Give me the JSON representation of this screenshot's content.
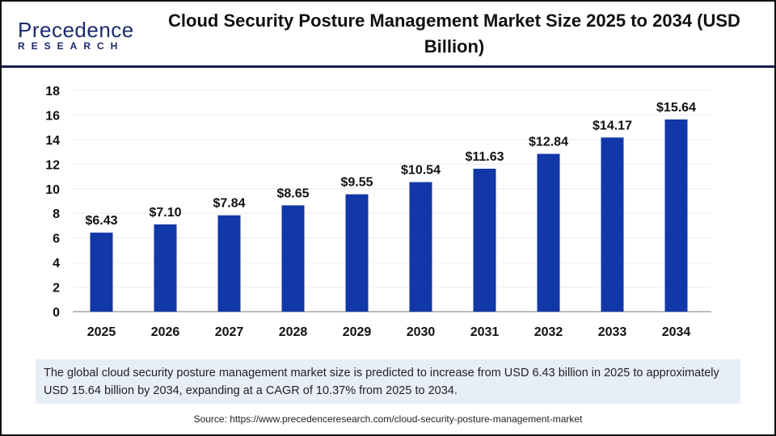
{
  "logo": {
    "line1": "Precedence",
    "line2": "RESEARCH"
  },
  "title": "Cloud Security Posture Management Market Size 2025 to 2034 (USD Billion)",
  "chart_data": {
    "type": "bar",
    "title": "Cloud Security Posture Management Market Size 2025 to 2034 (USD Billion)",
    "categories": [
      "2025",
      "2026",
      "2027",
      "2028",
      "2029",
      "2030",
      "2031",
      "2032",
      "2033",
      "2034"
    ],
    "values": [
      6.43,
      7.1,
      7.84,
      8.65,
      9.55,
      10.54,
      11.63,
      12.84,
      14.17,
      15.64
    ],
    "data_labels": [
      "$6.43",
      "$7.10",
      "$7.84",
      "$8.65",
      "$9.55",
      "$10.54",
      "$11.63",
      "$12.84",
      "$14.17",
      "$15.64"
    ],
    "yticks": [
      0,
      2,
      4,
      6,
      8,
      10,
      12,
      14,
      16,
      18
    ],
    "ylim": [
      0,
      18
    ],
    "xlabel": "",
    "ylabel": "",
    "grid": true,
    "bar_color": "#1237a8"
  },
  "note": "The global cloud security posture management market size is predicted to increase from USD 6.43 billion in 2025 to approximately USD 15.64 billion by 2034, expanding at a CAGR of 10.37% from 2025 to 2034.",
  "source": "Source: https://www.precedenceresearch.com/cloud-security-posture-management-market"
}
